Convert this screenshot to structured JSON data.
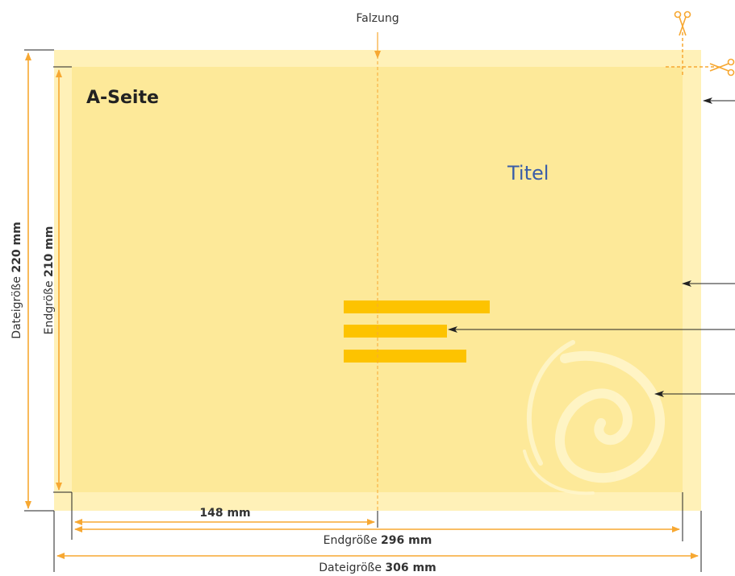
{
  "fold": {
    "label": "Falzung"
  },
  "page": {
    "side_label": "A-Seite",
    "title": "Titel"
  },
  "dimensions": {
    "file_height": {
      "prefix": "Dateigröße ",
      "value": "220 mm"
    },
    "final_height": {
      "prefix": "Endgröße ",
      "value": "210 mm"
    },
    "half_width": {
      "value": "148 mm"
    },
    "final_width": {
      "prefix": "Endgröße ",
      "value": "296 mm"
    },
    "file_width": {
      "prefix": "Dateigröße ",
      "value": "306 mm"
    }
  },
  "colors": {
    "bleed": "#fff1b8",
    "final": "#fde999",
    "accent": "#f7a832",
    "text_bars": "#fdc300",
    "title": "#3a5da8"
  },
  "icons": [
    "scissors-icon"
  ]
}
